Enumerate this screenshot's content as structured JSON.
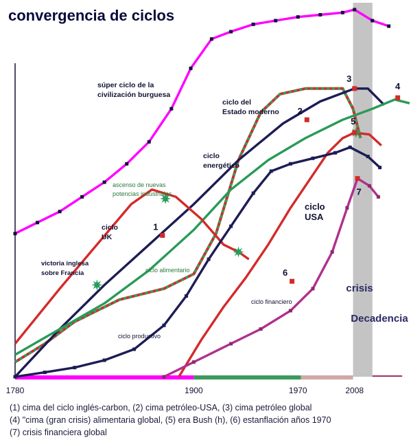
{
  "chart_data": {
    "type": "line",
    "title": "convergencia de ciclos",
    "xlim": [
      1780,
      2045
    ],
    "ylim": [
      0,
      100
    ],
    "x_ticks": [
      {
        "value": 1780,
        "label": "1780"
      },
      {
        "value": 1900,
        "label": "1900"
      },
      {
        "value": 1970,
        "label": "1970"
      },
      {
        "value": 2008,
        "label": "2008"
      }
    ],
    "crisis_band": {
      "x": [
        2007,
        2020
      ],
      "labels": [
        "crisis",
        "Decadencia"
      ]
    },
    "timeline_bar": [
      {
        "x": [
          1780,
          1900
        ],
        "color": "#ff00ff"
      },
      {
        "x": [
          1900,
          1972
        ],
        "color": "#3c9a5c"
      },
      {
        "x": [
          1972,
          2007
        ],
        "color": "#d0a8a8"
      },
      {
        "x": [
          2020,
          2040
        ],
        "color": "#a0306a"
      }
    ],
    "series": [
      {
        "name": "súper ciclo de la civilización burguesa",
        "color": "#ff00ff",
        "marker_color": "#111133",
        "style": "solid",
        "points": [
          [
            1780,
            39
          ],
          [
            1795,
            42
          ],
          [
            1810,
            45
          ],
          [
            1825,
            49
          ],
          [
            1840,
            53
          ],
          [
            1855,
            58
          ],
          [
            1870,
            64
          ],
          [
            1885,
            73
          ],
          [
            1898,
            84
          ],
          [
            1912,
            92
          ],
          [
            1925,
            94
          ],
          [
            1940,
            96
          ],
          [
            1955,
            97
          ],
          [
            1970,
            98
          ],
          [
            1985,
            98.6
          ],
          [
            2000,
            99.2
          ],
          [
            2008,
            100
          ],
          [
            2020,
            97
          ],
          [
            2031,
            95.5
          ]
        ]
      },
      {
        "name": "ciclo del Estado moderno",
        "color": "#d42a2a",
        "dash_color": "#3c9a5c",
        "style": "dashed",
        "points": [
          [
            1780,
            4
          ],
          [
            1800,
            9
          ],
          [
            1820,
            15
          ],
          [
            1850,
            21
          ],
          [
            1880,
            24
          ],
          [
            1900,
            28
          ],
          [
            1915,
            39
          ],
          [
            1930,
            59
          ],
          [
            1945,
            72
          ],
          [
            1958,
            77
          ],
          [
            1975,
            78.5
          ],
          [
            2000,
            78.5
          ],
          [
            2007,
            73
          ],
          [
            2012,
            65
          ]
        ]
      },
      {
        "name": "ciclo energético",
        "color": "#1c1c55",
        "style": "solid",
        "points": [
          [
            1780,
            0
          ],
          [
            1810,
            13
          ],
          [
            1840,
            25
          ],
          [
            1870,
            36
          ],
          [
            1900,
            47
          ],
          [
            1930,
            59
          ],
          [
            1960,
            69
          ],
          [
            1985,
            75
          ],
          [
            2008,
            78.5
          ],
          [
            2017,
            78.5
          ],
          [
            2028,
            74
          ]
        ]
      },
      {
        "name": "ciclo alimentario",
        "color": "#2a9a58",
        "style": "solid",
        "points": [
          [
            1780,
            6
          ],
          [
            1810,
            13
          ],
          [
            1840,
            20
          ],
          [
            1870,
            29
          ],
          [
            1900,
            40
          ],
          [
            1925,
            51
          ],
          [
            1950,
            59
          ],
          [
            1975,
            65
          ],
          [
            2000,
            70
          ],
          [
            2020,
            73
          ],
          [
            2035,
            75.5
          ],
          [
            2045,
            74.5
          ]
        ]
      },
      {
        "name": "ciclo UK",
        "color": "#d42a2a",
        "style": "solid",
        "points": [
          [
            1780,
            9
          ],
          [
            1810,
            24
          ],
          [
            1835,
            36
          ],
          [
            1858,
            47
          ],
          [
            1872,
            51
          ],
          [
            1888,
            49
          ],
          [
            1905,
            43
          ],
          [
            1920,
            36
          ],
          [
            1930,
            34
          ],
          [
            1937,
            32
          ]
        ]
      },
      {
        "name": "ciclo USA",
        "color": "#d42a2a",
        "style": "solid",
        "points": [
          [
            1890,
            0
          ],
          [
            1905,
            10
          ],
          [
            1920,
            19
          ],
          [
            1935,
            27
          ],
          [
            1950,
            36
          ],
          [
            1965,
            46
          ],
          [
            1980,
            55
          ],
          [
            1990,
            61
          ],
          [
            2000,
            65
          ],
          [
            2008,
            66.5
          ],
          [
            2018,
            66
          ],
          [
            2026,
            63
          ]
        ]
      },
      {
        "name": "ciclo productivo",
        "color": "#1c1c55",
        "marker_color": "#1c1c55",
        "style": "solid",
        "points": [
          [
            1780,
            0
          ],
          [
            1800,
            1.2
          ],
          [
            1820,
            2.5
          ],
          [
            1840,
            4.5
          ],
          [
            1860,
            7.5
          ],
          [
            1880,
            14
          ],
          [
            1895,
            22
          ],
          [
            1910,
            32
          ],
          [
            1925,
            41
          ],
          [
            1940,
            50
          ],
          [
            1952,
            56
          ],
          [
            1965,
            58
          ],
          [
            1980,
            59.5
          ],
          [
            1995,
            61
          ],
          [
            2005,
            62.5
          ],
          [
            2017,
            60
          ],
          [
            2025,
            57
          ]
        ]
      },
      {
        "name": "ciclo financiero",
        "color": "#b0308e",
        "marker_color": "#8a2a6e",
        "style": "solid",
        "points": [
          [
            1880,
            0
          ],
          [
            1900,
            4
          ],
          [
            1925,
            9
          ],
          [
            1945,
            13
          ],
          [
            1965,
            18
          ],
          [
            1980,
            24
          ],
          [
            1993,
            34
          ],
          [
            2003,
            46
          ],
          [
            2010,
            54
          ],
          [
            2018,
            52
          ],
          [
            2024,
            49
          ]
        ]
      }
    ],
    "star_markers": [
      {
        "x": 1835,
        "y": 25,
        "color": "#2a9a58"
      },
      {
        "x": 1881,
        "y": 48.5,
        "color": "#2a9a58"
      },
      {
        "x": 1930,
        "y": 34,
        "color": "#2a9a58"
      },
      {
        "x": 2009,
        "y": 66.5,
        "color": "#2a9a58"
      }
    ],
    "numbered_points": [
      {
        "label": "1",
        "x": 1879,
        "y": 38.5,
        "color": "#d42a2a"
      },
      {
        "label": "2",
        "x": 1976,
        "y": 70,
        "color": "#d42a2a"
      },
      {
        "label": "3",
        "x": 2008,
        "y": 78.5,
        "color": "#d42a2a"
      },
      {
        "label": "4",
        "x": 2037,
        "y": 76,
        "color": "#d42a2a"
      },
      {
        "label": "5",
        "x": 2008,
        "y": 66.5,
        "color": "#d42a2a"
      },
      {
        "label": "6",
        "x": 1966,
        "y": 26,
        "color": "#d42a2a"
      },
      {
        "label": "7",
        "x": 2010,
        "y": 54,
        "color": "#d42a2a"
      }
    ],
    "annotations": [
      {
        "key": "burguesa1",
        "text": "súper ciclo de la"
      },
      {
        "key": "burguesa2",
        "text": "civilización burguesa"
      },
      {
        "key": "estado1",
        "text": "ciclo del"
      },
      {
        "key": "estado2",
        "text": "Estado moderno"
      },
      {
        "key": "energ1",
        "text": "ciclo"
      },
      {
        "key": "energ2",
        "text": "energético"
      },
      {
        "key": "potencias1",
        "text": "ascenso de nuevas"
      },
      {
        "key": "potencias2",
        "text": "potencias industriales"
      },
      {
        "key": "uk1",
        "text": "ciclo"
      },
      {
        "key": "uk2",
        "text": "UK"
      },
      {
        "key": "usa1",
        "text": "ciclo"
      },
      {
        "key": "usa2",
        "text": "USA"
      },
      {
        "key": "victoria1",
        "text": "victoria inglesa"
      },
      {
        "key": "victoria2",
        "text": "sobre Francia"
      },
      {
        "key": "alimentario",
        "text": "ciclo alimentario"
      },
      {
        "key": "financiero",
        "text": "ciclo financiero"
      },
      {
        "key": "productivo",
        "text": "ciclo productivo"
      }
    ]
  },
  "footnotes": [
    "(1) cima del ciclo inglés-carbon,   (2) cima petróleo-USA,   (3) cima petróleo global",
    "(4) \"cima (gran crisis) alimentaria global,   (5) era Bush (h), (6) estanflación años 1970",
    "(7) crisis financiera global"
  ]
}
